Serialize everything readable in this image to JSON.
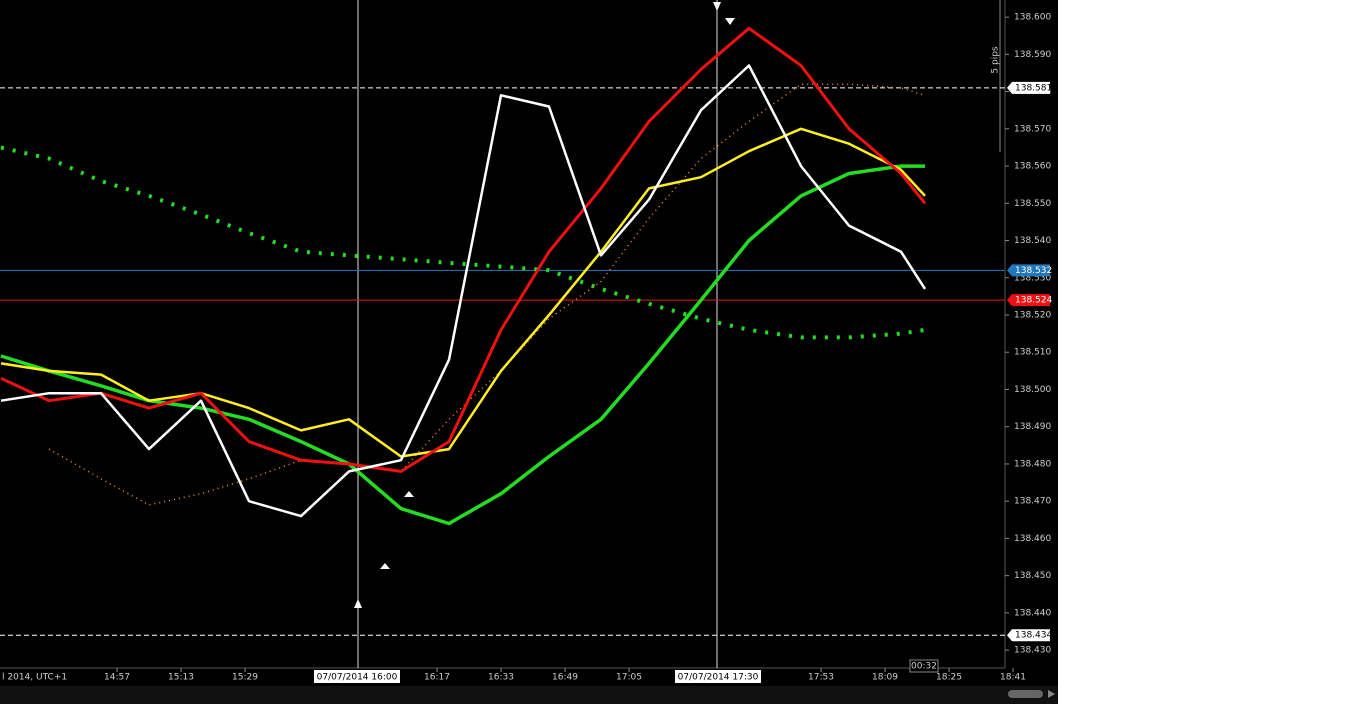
{
  "chart_data": {
    "type": "line",
    "x": [
      868,
      880,
      893,
      905,
      918,
      930,
      943,
      955,
      968,
      980,
      993,
      1005,
      1018,
      1030,
      1043,
      1055,
      1068,
      1080,
      1093,
      1099
    ],
    "xlim": [
      867.75,
      1119
    ],
    "xticks": [
      {
        "value": 897,
        "label": "14:57"
      },
      {
        "value": 913,
        "label": "15:13"
      },
      {
        "value": 929,
        "label": "15:29"
      },
      {
        "value": 977,
        "label": "16:17"
      },
      {
        "value": 993,
        "label": "16:33"
      },
      {
        "value": 1009,
        "label": "16:49"
      },
      {
        "value": 1025,
        "label": "17:05"
      },
      {
        "value": 1073,
        "label": "17:53"
      },
      {
        "value": 1089,
        "label": "18:09"
      },
      {
        "value": 1105,
        "label": "18:25"
      },
      {
        "value": 1121,
        "label": "18:41"
      }
    ],
    "ylim": [
      138.4252,
      138.6046
    ],
    "yticks": [
      {
        "value": 138.43,
        "label": "138.430"
      },
      {
        "value": 138.44,
        "label": "138.440"
      },
      {
        "value": 138.45,
        "label": "138.450"
      },
      {
        "value": 138.46,
        "label": "138.460"
      },
      {
        "value": 138.47,
        "label": "138.470"
      },
      {
        "value": 138.48,
        "label": "138.480"
      },
      {
        "value": 138.49,
        "label": "138.490"
      },
      {
        "value": 138.5,
        "label": "138.500"
      },
      {
        "value": 138.51,
        "label": "138.510"
      },
      {
        "value": 138.52,
        "label": "138.520"
      },
      {
        "value": 138.53,
        "label": "138.530"
      },
      {
        "value": 138.54,
        "label": "138.540"
      },
      {
        "value": 138.55,
        "label": "138.550"
      },
      {
        "value": 138.56,
        "label": "138.560"
      },
      {
        "value": 138.57,
        "label": "138.570"
      },
      {
        "value": 138.58,
        "label": "138.580"
      },
      {
        "value": 138.59,
        "label": "138.590"
      },
      {
        "value": 138.6,
        "label": "138.600"
      }
    ],
    "series": [
      {
        "color": "#22dd22",
        "width": 4,
        "dash": "3,9",
        "values": [
          138.565,
          138.562,
          138.556,
          138.552,
          138.547,
          138.542,
          138.537,
          138.536,
          138.535,
          138.534,
          138.533,
          138.532,
          138.527,
          138.523,
          138.519,
          138.516,
          138.514,
          138.514,
          138.515,
          138.516
        ]
      },
      {
        "color": "#ff8c1a",
        "width": 1.5,
        "dash": "1,4",
        "values": [
          null,
          138.484,
          138.476,
          138.469,
          138.472,
          138.476,
          138.481,
          138.48,
          138.478,
          138.492,
          138.505,
          138.519,
          138.529,
          138.546,
          138.562,
          138.572,
          138.582,
          138.582,
          138.581,
          138.579
        ]
      },
      {
        "color": "#22dd22",
        "width": 3.5,
        "values": [
          138.509,
          138.505,
          138.501,
          138.497,
          138.495,
          138.492,
          138.486,
          138.48,
          138.468,
          138.464,
          138.472,
          138.482,
          138.492,
          138.507,
          138.524,
          138.54,
          138.552,
          138.558,
          138.56,
          138.56
        ]
      },
      {
        "color": "#ffee22",
        "width": 2.5,
        "values": [
          138.507,
          138.505,
          138.504,
          138.497,
          138.499,
          138.495,
          138.489,
          138.492,
          138.482,
          138.484,
          138.505,
          138.52,
          138.537,
          138.554,
          138.557,
          138.564,
          138.57,
          138.566,
          138.559,
          138.552
        ]
      },
      {
        "color": "#ee1111",
        "width": 3,
        "values": [
          138.503,
          138.497,
          138.499,
          138.495,
          138.499,
          138.486,
          138.481,
          138.48,
          138.478,
          138.486,
          138.516,
          138.537,
          138.554,
          138.572,
          138.586,
          138.597,
          138.587,
          138.57,
          138.558,
          138.55
        ]
      },
      {
        "color": "#ffffff",
        "width": 2.5,
        "values": [
          138.497,
          138.499,
          138.499,
          138.484,
          138.497,
          138.47,
          138.466,
          138.478,
          138.481,
          138.508,
          138.579,
          138.576,
          138.536,
          138.551,
          138.575,
          138.587,
          138.56,
          138.544,
          138.537,
          138.527
        ]
      }
    ],
    "levels": [
      {
        "value": 138.581,
        "color": "#ffffff",
        "dashed": true
      },
      {
        "value": 138.532,
        "color": "#2277bb",
        "dashed": false
      },
      {
        "value": 138.524,
        "color": "#ee1111",
        "dashed": false
      },
      {
        "value": 138.434,
        "color": "#ffffff",
        "dashed": true
      }
    ],
    "cursor_labels": [
      "07/07/2014 16:00",
      "07/07/2014 17:30"
    ],
    "timezone": "l 2014, UTC+1",
    "countdown": "00:32",
    "pips": "5 pips"
  }
}
